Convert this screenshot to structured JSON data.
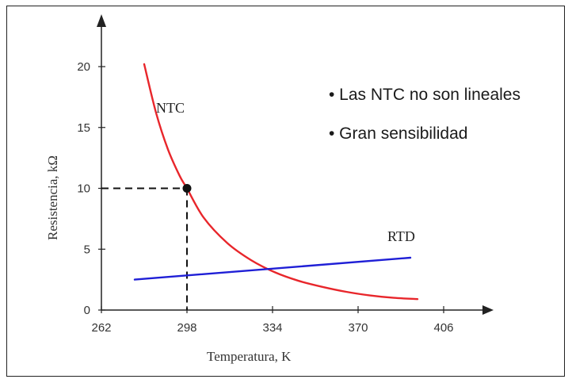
{
  "chart_data": {
    "type": "line",
    "title": "",
    "xlabel": "Temperatura, K",
    "ylabel": "Resistencia, kΩ",
    "x_ticks": [
      262,
      298,
      334,
      370,
      406
    ],
    "y_ticks": [
      0,
      5,
      10,
      15,
      20
    ],
    "xlim": [
      262,
      410
    ],
    "ylim": [
      0,
      22
    ],
    "grid": false,
    "series": [
      {
        "name": "NTC",
        "color": "#e8262b",
        "x": [
          280,
          285,
          290,
          295,
          298,
          305,
          315,
          325,
          335,
          345,
          355,
          365,
          375,
          385,
          395
        ],
        "y": [
          20.2,
          16.2,
          13.2,
          11.0,
          10.0,
          7.6,
          5.5,
          4.1,
          3.1,
          2.4,
          1.9,
          1.5,
          1.2,
          1.0,
          0.9
        ]
      },
      {
        "name": "RTD",
        "color": "#1f1fd6",
        "x": [
          276,
          392
        ],
        "y": [
          2.5,
          4.3
        ]
      }
    ],
    "marker": {
      "x": 298,
      "y": 10
    },
    "annotations": [
      "• Las NTC no son lineales",
      "• Gran sensibilidad"
    ]
  }
}
